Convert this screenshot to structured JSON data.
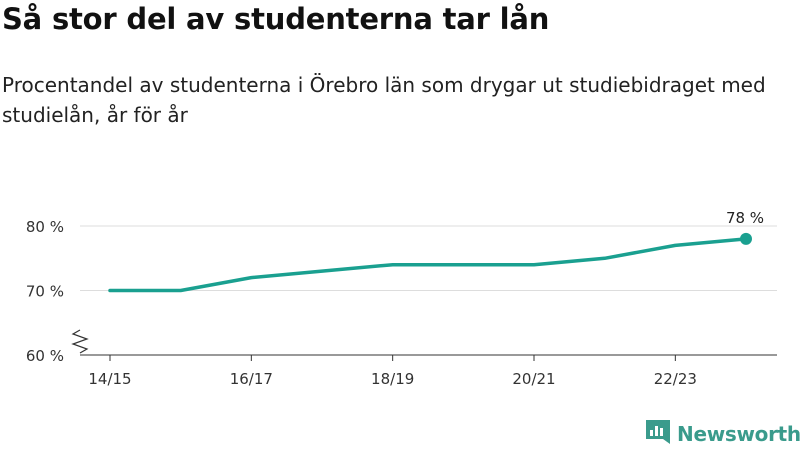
{
  "title": "Så stor del av studenterna tar lån",
  "subtitle": "Procentandel av studenterna i Örebro län som drygar ut studiebidraget med studielån, år för år",
  "brand": {
    "name": "Newsworthy",
    "logo_icon": "bar-chart-logo-icon"
  },
  "colors": {
    "line": "#1aa090",
    "grid": "#dddddd",
    "axis": "#333333",
    "brand": "#3a9b8c"
  },
  "chart_data": {
    "type": "line",
    "x": [
      "14/15",
      "15/16",
      "16/17",
      "17/18",
      "18/19",
      "19/20",
      "20/21",
      "21/22",
      "22/23",
      "23/24"
    ],
    "series": [
      {
        "values": [
          70,
          70,
          72,
          73,
          74,
          74,
          74,
          75,
          77,
          78
        ]
      }
    ],
    "x_tick_labels": [
      "14/15",
      "16/17",
      "18/19",
      "20/21",
      "22/23"
    ],
    "y_ticks": [
      60,
      70,
      80
    ],
    "y_tick_labels": [
      "60 %",
      "70 %",
      "80 %"
    ],
    "ylim": [
      60,
      80
    ],
    "axis_break": true,
    "grid": true,
    "annotation": {
      "text": "78 %",
      "x": "23/24",
      "y": 78
    }
  }
}
